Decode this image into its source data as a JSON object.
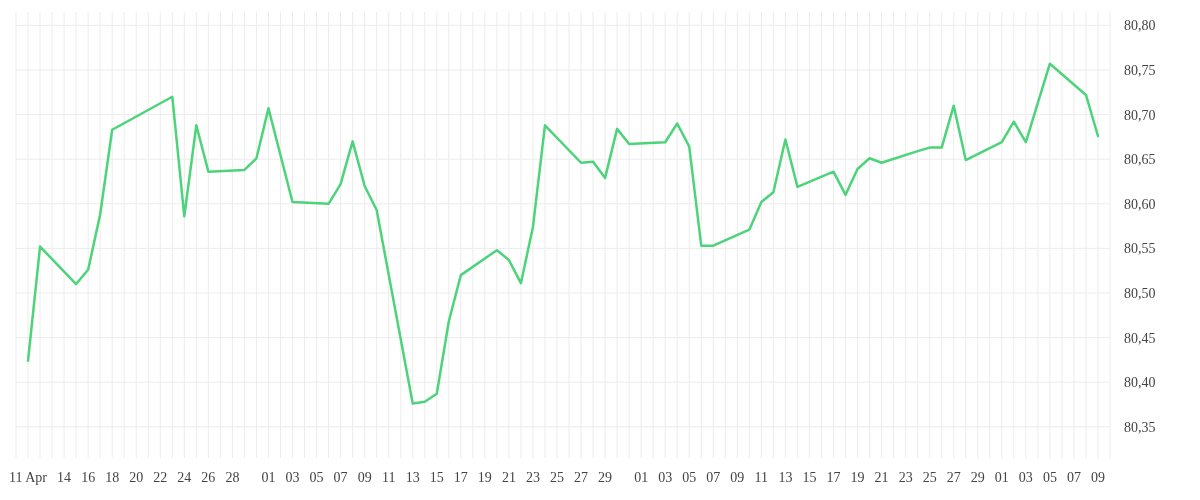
{
  "chart_data": {
    "type": "line",
    "color": "#4dd37a",
    "grid": true,
    "line_style": "solid",
    "marker": "none",
    "x": [
      "--04-11",
      "--04-12",
      "--04-15",
      "--04-16",
      "--04-17",
      "--04-18",
      "--04-23",
      "--04-24",
      "--04-25",
      "--04-26",
      "--04-29",
      "--04-30",
      "--05-01",
      "--05-03",
      "--05-06",
      "--05-07",
      "--05-08",
      "--05-09",
      "--05-10",
      "--05-13",
      "--05-14",
      "--05-15",
      "--05-16",
      "--05-17",
      "--05-20",
      "--05-21",
      "--05-22",
      "--05-23",
      "--05-24",
      "--05-27",
      "--05-28",
      "--05-29",
      "--05-30",
      "--05-31",
      "--06-03",
      "--06-04",
      "--06-05",
      "--06-06",
      "--06-07",
      "--06-10",
      "--06-11",
      "--06-12",
      "--06-13",
      "--06-14",
      "--06-17",
      "--06-18",
      "--06-19",
      "--06-20",
      "--06-21",
      "--06-24",
      "--06-25",
      "--06-26",
      "--06-27",
      "--06-28",
      "--07-01",
      "--07-02",
      "--07-03",
      "--07-05",
      "--07-08",
      "--07-09"
    ],
    "values": [
      80.424,
      80.552,
      80.51,
      80.526,
      80.588,
      80.683,
      80.72,
      80.586,
      80.688,
      80.636,
      80.638,
      80.651,
      80.707,
      80.602,
      80.6,
      80.622,
      80.67,
      80.62,
      80.593,
      80.376,
      80.378,
      80.387,
      80.468,
      80.52,
      80.548,
      80.537,
      80.511,
      80.574,
      80.688,
      80.646,
      80.647,
      80.629,
      80.684,
      80.667,
      80.669,
      80.69,
      80.664,
      80.553,
      80.553,
      80.571,
      80.602,
      80.613,
      80.672,
      80.619,
      80.636,
      80.61,
      80.639,
      80.651,
      80.646,
      80.659,
      80.663,
      80.663,
      80.71,
      80.649,
      80.669,
      80.692,
      80.669,
      80.757,
      80.722,
      80.676
    ],
    "xlim": [
      "--04-10",
      "--07-10"
    ],
    "xticks": [
      {
        "value": "--04-10",
        "label": null
      },
      {
        "value": "--04-11",
        "label": "11 Apr"
      },
      {
        "value": "--04-12",
        "label": null
      },
      {
        "value": "--04-13",
        "label": null
      },
      {
        "value": "--04-14",
        "label": "14"
      },
      {
        "value": "--04-15",
        "label": null
      },
      {
        "value": "--04-16",
        "label": "16"
      },
      {
        "value": "--04-17",
        "label": null
      },
      {
        "value": "--04-18",
        "label": "18"
      },
      {
        "value": "--04-19",
        "label": null
      },
      {
        "value": "--04-20",
        "label": "20"
      },
      {
        "value": "--04-21",
        "label": null
      },
      {
        "value": "--04-22",
        "label": "22"
      },
      {
        "value": "--04-23",
        "label": null
      },
      {
        "value": "--04-24",
        "label": "24"
      },
      {
        "value": "--04-25",
        "label": null
      },
      {
        "value": "--04-26",
        "label": "26"
      },
      {
        "value": "--04-27",
        "label": null
      },
      {
        "value": "--04-28",
        "label": "28"
      },
      {
        "value": "--04-29",
        "label": null
      },
      {
        "value": "--04-30",
        "label": null
      },
      {
        "value": "--05-01",
        "label": "01"
      },
      {
        "value": "--05-02",
        "label": null
      },
      {
        "value": "--05-03",
        "label": "03"
      },
      {
        "value": "--05-04",
        "label": null
      },
      {
        "value": "--05-05",
        "label": "05"
      },
      {
        "value": "--05-06",
        "label": null
      },
      {
        "value": "--05-07",
        "label": "07"
      },
      {
        "value": "--05-08",
        "label": null
      },
      {
        "value": "--05-09",
        "label": "09"
      },
      {
        "value": "--05-10",
        "label": null
      },
      {
        "value": "--05-11",
        "label": "11"
      },
      {
        "value": "--05-12",
        "label": null
      },
      {
        "value": "--05-13",
        "label": "13"
      },
      {
        "value": "--05-14",
        "label": null
      },
      {
        "value": "--05-15",
        "label": "15"
      },
      {
        "value": "--05-16",
        "label": null
      },
      {
        "value": "--05-17",
        "label": "17"
      },
      {
        "value": "--05-18",
        "label": null
      },
      {
        "value": "--05-19",
        "label": "19"
      },
      {
        "value": "--05-20",
        "label": null
      },
      {
        "value": "--05-21",
        "label": "21"
      },
      {
        "value": "--05-22",
        "label": null
      },
      {
        "value": "--05-23",
        "label": "23"
      },
      {
        "value": "--05-24",
        "label": null
      },
      {
        "value": "--05-25",
        "label": "25"
      },
      {
        "value": "--05-26",
        "label": null
      },
      {
        "value": "--05-27",
        "label": "27"
      },
      {
        "value": "--05-28",
        "label": null
      },
      {
        "value": "--05-29",
        "label": "29"
      },
      {
        "value": "--05-30",
        "label": null
      },
      {
        "value": "--05-31",
        "label": null
      },
      {
        "value": "--06-01",
        "label": "01"
      },
      {
        "value": "--06-02",
        "label": null
      },
      {
        "value": "--06-03",
        "label": "03"
      },
      {
        "value": "--06-04",
        "label": null
      },
      {
        "value": "--06-05",
        "label": "05"
      },
      {
        "value": "--06-06",
        "label": null
      },
      {
        "value": "--06-07",
        "label": "07"
      },
      {
        "value": "--06-08",
        "label": null
      },
      {
        "value": "--06-09",
        "label": "09"
      },
      {
        "value": "--06-10",
        "label": null
      },
      {
        "value": "--06-11",
        "label": "11"
      },
      {
        "value": "--06-12",
        "label": null
      },
      {
        "value": "--06-13",
        "label": "13"
      },
      {
        "value": "--06-14",
        "label": null
      },
      {
        "value": "--06-15",
        "label": "15"
      },
      {
        "value": "--06-16",
        "label": null
      },
      {
        "value": "--06-17",
        "label": "17"
      },
      {
        "value": "--06-18",
        "label": null
      },
      {
        "value": "--06-19",
        "label": "19"
      },
      {
        "value": "--06-20",
        "label": null
      },
      {
        "value": "--06-21",
        "label": "21"
      },
      {
        "value": "--06-22",
        "label": null
      },
      {
        "value": "--06-23",
        "label": "23"
      },
      {
        "value": "--06-24",
        "label": null
      },
      {
        "value": "--06-25",
        "label": "25"
      },
      {
        "value": "--06-26",
        "label": null
      },
      {
        "value": "--06-27",
        "label": "27"
      },
      {
        "value": "--06-28",
        "label": null
      },
      {
        "value": "--06-29",
        "label": "29"
      },
      {
        "value": "--06-30",
        "label": null
      },
      {
        "value": "--07-01",
        "label": "01"
      },
      {
        "value": "--07-02",
        "label": null
      },
      {
        "value": "--07-03",
        "label": "03"
      },
      {
        "value": "--07-04",
        "label": null
      },
      {
        "value": "--07-05",
        "label": "05"
      },
      {
        "value": "--07-06",
        "label": null
      },
      {
        "value": "--07-07",
        "label": "07"
      },
      {
        "value": "--07-08",
        "label": null
      },
      {
        "value": "--07-09",
        "label": "09"
      },
      {
        "value": "--07-10",
        "label": null
      }
    ],
    "ylim": [
      80.315,
      80.815
    ],
    "yticks": [
      {
        "value": 80.35,
        "label": "80,35"
      },
      {
        "value": 80.4,
        "label": "80,40"
      },
      {
        "value": 80.45,
        "label": "80,45"
      },
      {
        "value": 80.5,
        "label": "80,50"
      },
      {
        "value": 80.55,
        "label": "80,55"
      },
      {
        "value": 80.6,
        "label": "80,60"
      },
      {
        "value": 80.65,
        "label": "80,65"
      },
      {
        "value": 80.7,
        "label": "80,70"
      },
      {
        "value": 80.75,
        "label": "80,75"
      },
      {
        "value": 80.8,
        "label": "80,80"
      }
    ]
  }
}
